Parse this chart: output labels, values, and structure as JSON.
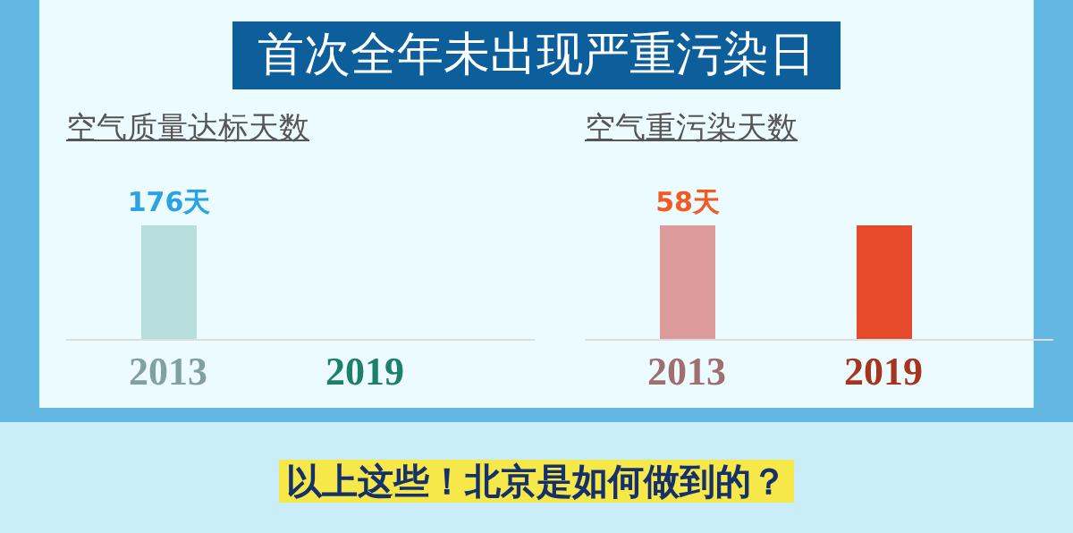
{
  "chart_data": [
    {
      "type": "other",
      "title": "首次全年未出现严重污染日",
      "annotations": [
        "以上这些！北京是如何做到的？"
      ]
    },
    {
      "type": "bar",
      "title": "空气质量达标天数",
      "categories": [
        "2013",
        "2019"
      ],
      "values": [
        176,
        null
      ],
      "colors": [
        "#b5dedd",
        "#27b294"
      ],
      "value_labels": [
        "176天",
        null
      ],
      "legend": false
    },
    {
      "type": "bar",
      "title": "空气重污染天数",
      "categories": [
        "2013",
        "2019"
      ],
      "values": [
        58,
        58
      ],
      "colors": [
        "#dd9a9a",
        "#e64a2a"
      ],
      "value_labels": [
        "58天",
        null
      ],
      "legend": false
    }
  ]
}
